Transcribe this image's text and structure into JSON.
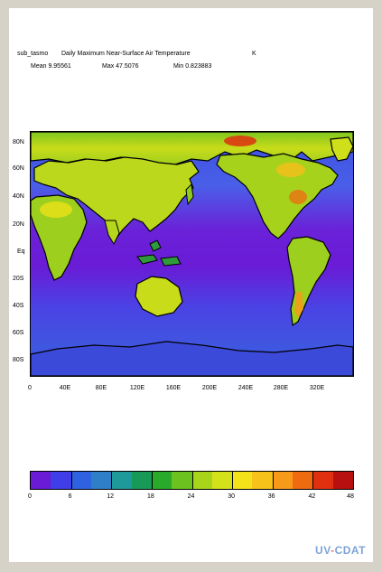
{
  "header": {
    "variable": "sub_tasmo",
    "long_name": "Daily Maximum Near-Surface Air Temperature",
    "units": "K",
    "mean": "Mean 9.95561",
    "max": "Max 47.5076",
    "min": "Min 0.823883"
  },
  "map": {
    "lat_labels": [
      "80N",
      "60N",
      "40N",
      "20N",
      "Eq",
      "20S",
      "40S",
      "60S",
      "80S"
    ],
    "lon_labels": [
      "0",
      "40E",
      "80E",
      "120E",
      "160E",
      "200E",
      "240E",
      "280E",
      "320E"
    ]
  },
  "colorbar": {
    "labels": [
      "0",
      "6",
      "12",
      "18",
      "24",
      "30",
      "36",
      "42",
      "48"
    ],
    "colors": [
      "#6a1bd6",
      "#3f3ee8",
      "#2f62e0",
      "#2e7fc8",
      "#1f9a9a",
      "#179a58",
      "#2aaa2a",
      "#6cc21e",
      "#a8d41a",
      "#d4e21a",
      "#f4e21a",
      "#f7c21a",
      "#f79a1a",
      "#f06a10",
      "#e03010",
      "#b81010"
    ]
  },
  "logo": {
    "text": "UV-CDAT",
    "colors": [
      "#7da4d6",
      "#e07a7a"
    ]
  },
  "chart_data": {
    "type": "heatmap",
    "title": "Daily Maximum Near-Surface Air Temperature",
    "units": "K",
    "x_range": [
      0,
      360
    ],
    "y_range": [
      -90,
      90
    ],
    "x_ticks": [
      "0",
      "40E",
      "80E",
      "120E",
      "160E",
      "200E",
      "240E",
      "280E",
      "320E"
    ],
    "y_ticks": [
      "80N",
      "60N",
      "40N",
      "20N",
      "Eq",
      "20S",
      "40S",
      "60S",
      "80S"
    ],
    "color_range": [
      0,
      48
    ],
    "mean": 9.95561,
    "max": 47.5076,
    "min": 0.823883
  }
}
